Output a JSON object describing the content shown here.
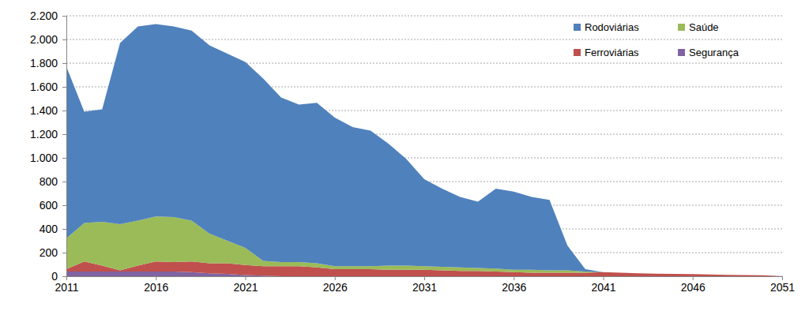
{
  "chart_data": {
    "type": "area",
    "stacked": true,
    "grid": true,
    "legend": "top-right",
    "x": [
      2011,
      2012,
      2013,
      2014,
      2015,
      2016,
      2017,
      2018,
      2019,
      2020,
      2021,
      2022,
      2023,
      2024,
      2025,
      2026,
      2027,
      2028,
      2029,
      2030,
      2031,
      2032,
      2033,
      2034,
      2035,
      2036,
      2037,
      2038,
      2039,
      2040,
      2041,
      2042,
      2043,
      2044,
      2045,
      2046,
      2047,
      2048,
      2049,
      2050,
      2051
    ],
    "xlim": [
      2011,
      2051
    ],
    "xticks": [
      2011,
      2016,
      2021,
      2026,
      2031,
      2036,
      2041,
      2046,
      2051
    ],
    "ylim": [
      0,
      2200
    ],
    "yticks": [
      0,
      200,
      400,
      600,
      800,
      {
        "value": 1000,
        "label": "1.000"
      },
      {
        "value": 1200,
        "label": "1.200"
      },
      {
        "value": 1400,
        "label": "1.400"
      },
      {
        "value": 1600,
        "label": "1.600"
      },
      {
        "value": 1800,
        "label": "1.800"
      },
      {
        "value": 2000,
        "label": "2.000"
      },
      {
        "value": 2200,
        "label": "2.200"
      }
    ],
    "series": [
      {
        "name": "Segurança",
        "color": "#8064a2",
        "values": [
          40,
          40,
          40,
          40,
          40,
          40,
          40,
          35,
          25,
          20,
          10,
          5,
          0,
          0,
          0,
          0,
          0,
          0,
          0,
          0,
          0,
          0,
          0,
          0,
          0,
          0,
          0,
          0,
          0,
          0,
          0,
          0,
          0,
          0,
          0,
          0,
          0,
          0,
          0,
          0,
          0
        ]
      },
      {
        "name": "Ferroviárias",
        "color": "#c0504d",
        "values": [
          20,
          85,
          50,
          10,
          50,
          85,
          80,
          90,
          85,
          90,
          85,
          80,
          85,
          85,
          75,
          60,
          60,
          60,
          55,
          55,
          55,
          50,
          45,
          45,
          40,
          35,
          30,
          30,
          30,
          30,
          35,
          30,
          25,
          22,
          20,
          18,
          15,
          12,
          10,
          8,
          0
        ]
      },
      {
        "name": "Saúde",
        "color": "#9bbb59",
        "values": [
          260,
          325,
          370,
          390,
          380,
          380,
          380,
          345,
          250,
          190,
          145,
          45,
          35,
          35,
          35,
          25,
          25,
          25,
          35,
          35,
          30,
          30,
          30,
          25,
          25,
          20,
          25,
          20,
          20,
          10,
          0,
          0,
          0,
          0,
          0,
          0,
          0,
          0,
          0,
          0,
          0
        ]
      },
      {
        "name": "Rodoviárias",
        "color": "#4f81bd",
        "values": [
          1450,
          940,
          950,
          1530,
          1640,
          1625,
          1610,
          1605,
          1590,
          1580,
          1570,
          1540,
          1390,
          1330,
          1355,
          1255,
          1175,
          1145,
          1030,
          900,
          735,
          660,
          595,
          560,
          675,
          660,
          615,
          595,
          210,
          20,
          0,
          0,
          0,
          0,
          0,
          0,
          0,
          0,
          0,
          0,
          0
        ]
      }
    ]
  }
}
